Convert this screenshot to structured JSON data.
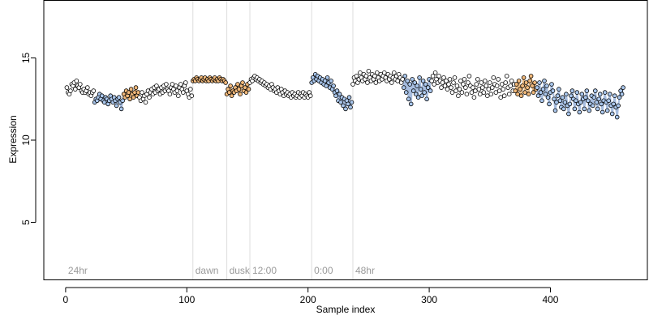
{
  "chart_data": {
    "type": "scatter",
    "title": "",
    "xlabel": "Sample index",
    "ylabel": "Expression",
    "xlim": [
      -18,
      480
    ],
    "ylim": [
      1.5,
      18.5
    ],
    "x_ticks": [
      0,
      100,
      200,
      300,
      400
    ],
    "y_ticks": [
      5,
      10,
      15
    ],
    "grid": false,
    "legend": "none",
    "colors": {
      "frame": "#000000",
      "phase_line": "#dddddd",
      "phase_text": "#9a9a9a",
      "point_edge": "#000000",
      "point_default": "#ffffff",
      "point_orange": "#f0b87a",
      "point_blue": "#a9c6ec",
      "trace_blue": "#9db6dc",
      "trace_orange": "#e8b57a"
    },
    "phase_markers": [
      {
        "x": 0,
        "label": "24hr",
        "line": false
      },
      {
        "x": 105,
        "label": "dawn",
        "line": true
      },
      {
        "x": 133,
        "label": "dusk",
        "line": true
      },
      {
        "x": 152,
        "label": "12:00",
        "line": true
      },
      {
        "x": 203,
        "label": "0:00",
        "line": true
      },
      {
        "x": 237,
        "label": "48hr",
        "line": true
      }
    ],
    "n_points": 460,
    "segments": [
      {
        "x": [
          1,
          2,
          3,
          4,
          5,
          6,
          7,
          8,
          9,
          10,
          11,
          12,
          13,
          14,
          15,
          16,
          17,
          18,
          19,
          20,
          21,
          22,
          23
        ],
        "y": [
          13.2,
          12.9,
          12.8,
          13.0,
          13.4,
          13.3,
          13.5,
          13.1,
          13.6,
          13.3,
          13.2,
          13.4,
          13.0,
          12.9,
          13.1,
          12.9,
          13.0,
          13.2,
          12.8,
          12.9,
          12.7,
          12.9,
          13.0
        ],
        "color": "default",
        "trace": false
      },
      {
        "x": [
          24,
          25,
          26,
          27,
          28,
          29,
          30,
          31,
          32,
          33,
          34,
          35,
          36,
          37,
          38,
          39,
          40,
          41,
          42,
          43,
          44,
          45,
          46,
          47
        ],
        "y": [
          12.3,
          12.5,
          12.4,
          12.6,
          12.8,
          12.5,
          12.7,
          12.4,
          12.3,
          12.6,
          12.5,
          12.2,
          12.4,
          12.7,
          12.5,
          12.3,
          12.6,
          12.4,
          12.1,
          12.5,
          12.6,
          12.3,
          11.9,
          12.4
        ],
        "color": "blue",
        "trace": true
      },
      {
        "x": [
          48,
          49,
          50,
          51,
          52,
          53,
          54,
          55,
          56,
          57,
          58,
          59,
          60
        ],
        "y": [
          12.8,
          12.6,
          13.0,
          12.7,
          12.9,
          12.5,
          13.1,
          12.8,
          12.6,
          12.9,
          13.2,
          12.7,
          12.9
        ],
        "color": "orange",
        "trace": true
      },
      {
        "x": [
          61,
          62,
          63,
          64,
          65,
          66,
          67,
          68,
          69,
          70,
          71,
          72,
          73,
          74,
          75,
          76,
          77,
          78,
          79,
          80,
          81,
          82,
          83,
          84,
          85,
          86,
          87,
          88,
          89,
          90,
          91,
          92,
          93,
          94,
          95,
          96,
          97,
          98,
          99,
          100,
          101,
          102,
          103,
          104
        ],
        "y": [
          12.6,
          12.4,
          12.9,
          12.5,
          12.7,
          12.3,
          12.8,
          13.0,
          12.6,
          12.9,
          13.1,
          12.8,
          13.2,
          12.9,
          13.3,
          13.0,
          13.1,
          12.8,
          13.2,
          12.9,
          13.3,
          13.0,
          13.4,
          13.1,
          13.0,
          12.8,
          13.2,
          13.4,
          13.1,
          12.9,
          13.3,
          13.0,
          12.7,
          13.2,
          13.4,
          13.1,
          12.9,
          13.3,
          13.5,
          13.0,
          12.8,
          12.6,
          13.1,
          12.7
        ],
        "color": "default",
        "trace": false
      },
      {
        "x": [
          105,
          106,
          107,
          108,
          109,
          110,
          111,
          112,
          113,
          114,
          115,
          116,
          117,
          118,
          119,
          120,
          121,
          122,
          123,
          124,
          125,
          126,
          127,
          128,
          129,
          130,
          131,
          132
        ],
        "y": [
          13.6,
          13.7,
          13.6,
          13.8,
          13.7,
          13.6,
          13.7,
          13.8,
          13.6,
          13.7,
          13.8,
          13.6,
          13.7,
          13.6,
          13.8,
          13.7,
          13.6,
          13.7,
          13.8,
          13.6,
          13.7,
          13.6,
          13.8,
          13.7,
          13.6,
          13.7,
          13.6,
          13.5
        ],
        "color": "orange",
        "trace": true
      },
      {
        "x": [
          133,
          134,
          135,
          136,
          137,
          138,
          139,
          140,
          141,
          142,
          143,
          144,
          145,
          146,
          147,
          148,
          149,
          150,
          151
        ],
        "y": [
          12.8,
          13.1,
          12.9,
          13.3,
          12.7,
          13.0,
          12.9,
          13.2,
          13.0,
          13.4,
          13.1,
          12.8,
          13.3,
          13.5,
          13.0,
          13.2,
          12.9,
          13.4,
          13.1
        ],
        "color": "orange",
        "trace": true
      },
      {
        "x": [
          152,
          153,
          154,
          155,
          156,
          157,
          158,
          159,
          160,
          161,
          162,
          163,
          164,
          165,
          166,
          167,
          168,
          169,
          170,
          171,
          172,
          173,
          174,
          175,
          176,
          177,
          178,
          179,
          180,
          181,
          182,
          183,
          184,
          185,
          186,
          187,
          188,
          189,
          190,
          191,
          192,
          193,
          194,
          195,
          196,
          197,
          198,
          199,
          200,
          201,
          202
        ],
        "y": [
          13.5,
          13.7,
          13.6,
          13.8,
          13.9,
          13.7,
          13.8,
          13.6,
          13.7,
          13.5,
          13.6,
          13.4,
          13.5,
          13.3,
          13.4,
          13.2,
          13.3,
          13.1,
          13.4,
          13.2,
          13.0,
          13.1,
          12.9,
          13.2,
          13.0,
          12.8,
          13.1,
          12.9,
          12.7,
          13.0,
          12.8,
          12.9,
          12.7,
          12.8,
          12.6,
          12.9,
          12.7,
          12.8,
          12.6,
          12.7,
          12.9,
          12.6,
          12.8,
          12.7,
          12.9,
          12.6,
          12.8,
          12.7,
          12.6,
          12.9,
          12.7
        ],
        "color": "default",
        "trace": false
      },
      {
        "x": [
          203,
          204,
          205,
          206,
          207,
          208,
          209,
          210,
          211,
          212,
          213,
          214,
          215,
          216,
          217,
          218,
          219,
          220,
          221,
          222,
          223,
          224,
          225,
          226,
          227,
          228,
          229,
          230,
          231,
          232,
          233,
          234,
          235,
          236
        ],
        "y": [
          13.5,
          13.8,
          13.6,
          14.0,
          13.7,
          13.9,
          13.6,
          13.8,
          13.5,
          13.7,
          13.4,
          13.6,
          13.3,
          13.8,
          13.5,
          13.2,
          13.6,
          13.1,
          13.3,
          12.9,
          12.7,
          13.0,
          12.4,
          12.8,
          12.3,
          12.6,
          12.1,
          12.5,
          11.9,
          12.4,
          12.2,
          12.6,
          12.0,
          12.3
        ],
        "color": "blue",
        "trace": true
      },
      {
        "x": [
          237,
          238,
          239,
          240,
          241,
          242,
          243,
          244,
          245,
          246,
          247,
          248,
          249,
          250,
          251,
          252,
          253,
          254,
          255,
          256,
          257,
          258,
          259,
          260,
          261,
          262,
          263,
          264,
          265,
          266,
          267,
          268,
          269,
          270,
          271,
          272,
          273,
          274,
          275,
          276,
          277,
          278
        ],
        "y": [
          13.4,
          13.8,
          13.6,
          13.9,
          13.5,
          13.7,
          14.1,
          13.8,
          13.6,
          14.0,
          13.7,
          13.9,
          13.5,
          14.2,
          13.8,
          13.6,
          14.0,
          13.7,
          13.9,
          13.5,
          14.1,
          13.8,
          13.6,
          14.0,
          13.7,
          13.9,
          14.1,
          13.8,
          13.6,
          14.0,
          13.7,
          13.9,
          13.5,
          13.8,
          14.1,
          13.7,
          13.9,
          13.6,
          14.0,
          13.8,
          13.5,
          13.7
        ],
        "color": "default",
        "trace": false
      },
      {
        "x": [
          279,
          280,
          281,
          282,
          283,
          284,
          285,
          286,
          287,
          288,
          289,
          290,
          291,
          292,
          293,
          294,
          295,
          296,
          297,
          298,
          299,
          300,
          301
        ],
        "y": [
          13.2,
          13.9,
          12.9,
          13.6,
          12.5,
          13.4,
          12.2,
          13.7,
          13.0,
          13.5,
          12.8,
          13.3,
          12.6,
          13.8,
          13.1,
          12.7,
          13.6,
          12.9,
          13.4,
          12.5,
          13.2,
          13.7,
          13.0
        ],
        "color": "blue",
        "trace": true
      },
      {
        "x": [
          302,
          303,
          304,
          305,
          306,
          307,
          308,
          309,
          310,
          311,
          312,
          313,
          314,
          315,
          316,
          317,
          318,
          319,
          320,
          321,
          322,
          323,
          324,
          325,
          326,
          327,
          328,
          329,
          330,
          331,
          332,
          333,
          334,
          335,
          336,
          337,
          338,
          339,
          340,
          341,
          342,
          343,
          344,
          345,
          346,
          347,
          348,
          349,
          350,
          351,
          352,
          353,
          354,
          355,
          356,
          357,
          358,
          359,
          360,
          361,
          362,
          363,
          364,
          365,
          366,
          367,
          368,
          369,
          370
        ],
        "y": [
          13.6,
          13.9,
          13.4,
          14.1,
          13.7,
          13.5,
          13.9,
          13.6,
          13.2,
          13.5,
          13.8,
          13.3,
          13.6,
          13.1,
          13.4,
          13.7,
          13.2,
          12.9,
          13.5,
          13.8,
          13.0,
          13.3,
          12.7,
          13.1,
          13.6,
          12.9,
          13.4,
          13.7,
          13.2,
          12.8,
          13.5,
          13.9,
          13.3,
          12.9,
          13.2,
          12.6,
          13.0,
          13.4,
          13.7,
          13.1,
          12.8,
          13.5,
          13.2,
          12.9,
          13.6,
          13.3,
          12.7,
          13.1,
          13.5,
          12.8,
          13.2,
          13.8,
          13.4,
          12.9,
          13.3,
          13.7,
          13.0,
          12.6,
          13.4,
          13.1,
          12.7,
          13.5,
          13.9,
          13.2,
          12.8,
          13.3,
          13.6,
          13.0,
          13.4
        ],
        "color": "default",
        "trace": false
      },
      {
        "x": [
          371,
          372,
          373,
          374,
          375,
          376,
          377,
          378,
          379,
          380,
          381,
          382,
          383,
          384,
          385,
          386,
          387,
          388
        ],
        "y": [
          13.0,
          13.4,
          12.8,
          13.6,
          13.1,
          12.7,
          13.3,
          13.8,
          12.9,
          13.5,
          13.2,
          12.8,
          13.6,
          13.9,
          13.3,
          12.9,
          13.5,
          13.1
        ],
        "color": "orange",
        "trace": true
      },
      {
        "x": [
          389,
          390,
          391,
          392,
          393,
          394,
          395,
          396,
          397,
          398,
          399,
          400,
          401,
          402,
          403,
          404,
          405,
          406,
          407,
          408,
          409,
          410,
          411,
          412,
          413,
          414,
          415,
          416,
          417,
          418,
          419,
          420,
          421,
          422,
          423,
          424,
          425,
          426,
          427,
          428,
          429,
          430,
          431,
          432,
          433,
          434,
          435,
          436,
          437,
          438,
          439,
          440,
          441,
          442,
          443,
          444,
          445,
          446,
          447,
          448,
          449,
          450,
          451,
          452,
          453,
          454,
          455,
          456,
          457,
          458,
          459,
          460
        ],
        "y": [
          13.2,
          12.7,
          13.5,
          12.9,
          12.4,
          13.1,
          13.6,
          12.8,
          13.3,
          12.6,
          12.2,
          12.9,
          13.4,
          13.0,
          12.5,
          11.8,
          12.3,
          12.7,
          13.1,
          12.4,
          12.0,
          12.6,
          11.9,
          12.3,
          12.8,
          12.1,
          11.6,
          12.2,
          12.7,
          13.0,
          12.5,
          11.9,
          12.4,
          12.9,
          12.2,
          11.7,
          12.3,
          12.8,
          12.5,
          11.9,
          12.6,
          13.0,
          12.4,
          11.8,
          12.2,
          12.7,
          12.1,
          12.6,
          13.0,
          12.3,
          11.9,
          12.5,
          12.8,
          12.2,
          11.7,
          12.4,
          12.9,
          12.3,
          11.8,
          12.4,
          12.8,
          12.1,
          11.6,
          12.2,
          12.7,
          12.0,
          11.4,
          12.1,
          12.6,
          13.0,
          12.8,
          13.2
        ],
        "color": "blue",
        "trace": true
      }
    ]
  }
}
